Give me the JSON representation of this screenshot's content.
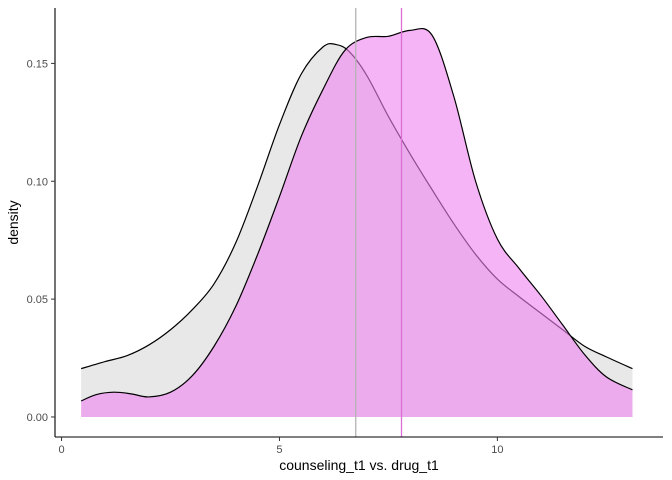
{
  "chart_data": {
    "type": "area",
    "title": "",
    "xlabel": "counseling_t1 vs. drug_t1",
    "ylabel": "density",
    "xlim": [
      -0.15,
      13.8
    ],
    "ylim": [
      -0.0085,
      0.1735
    ],
    "xticks": [
      0,
      5,
      10
    ],
    "yticks": [
      0.0,
      0.05,
      0.1,
      0.15
    ],
    "xtick_labels": [
      "0",
      "5",
      "10"
    ],
    "ytick_labels": [
      "0.00",
      "0.05",
      "0.10",
      "0.15"
    ],
    "grid": false,
    "legend": "none",
    "series": [
      {
        "fill": "#d9d9d9",
        "outline": "#000000",
        "mean_line": 6.75,
        "mean_color": "#b3b3b3",
        "x": [
          0.45,
          1.0,
          1.5,
          2.0,
          2.5,
          3.0,
          3.5,
          4.0,
          4.5,
          5.0,
          5.5,
          6.0,
          6.3,
          6.6,
          7.0,
          7.5,
          8.0,
          8.5,
          9.0,
          9.5,
          10.0,
          10.5,
          11.0,
          11.5,
          12.0,
          12.5,
          13.1
        ],
        "y": [
          0.0205,
          0.0235,
          0.026,
          0.0305,
          0.037,
          0.0455,
          0.0565,
          0.074,
          0.098,
          0.124,
          0.1455,
          0.157,
          0.158,
          0.155,
          0.145,
          0.1275,
          0.1115,
          0.0965,
          0.082,
          0.069,
          0.0585,
          0.051,
          0.044,
          0.037,
          0.03,
          0.0255,
          0.0205
        ]
      },
      {
        "fill": "#ee82ee",
        "outline": "#000000",
        "mean_line": 7.8,
        "mean_color": "#da70d6",
        "x": [
          0.45,
          0.8,
          1.2,
          1.6,
          2.0,
          2.5,
          3.0,
          3.5,
          4.0,
          4.5,
          5.0,
          5.5,
          6.0,
          6.5,
          7.0,
          7.5,
          8.0,
          8.5,
          9.0,
          9.5,
          10.0,
          10.5,
          11.0,
          11.5,
          12.0,
          12.5,
          13.1
        ],
        "y": [
          0.0068,
          0.0095,
          0.0105,
          0.0098,
          0.0085,
          0.0105,
          0.0175,
          0.03,
          0.047,
          0.069,
          0.0935,
          0.119,
          0.139,
          0.1555,
          0.161,
          0.1615,
          0.164,
          0.162,
          0.136,
          0.1,
          0.0755,
          0.063,
          0.0515,
          0.039,
          0.0265,
          0.017,
          0.0115
        ]
      }
    ]
  }
}
